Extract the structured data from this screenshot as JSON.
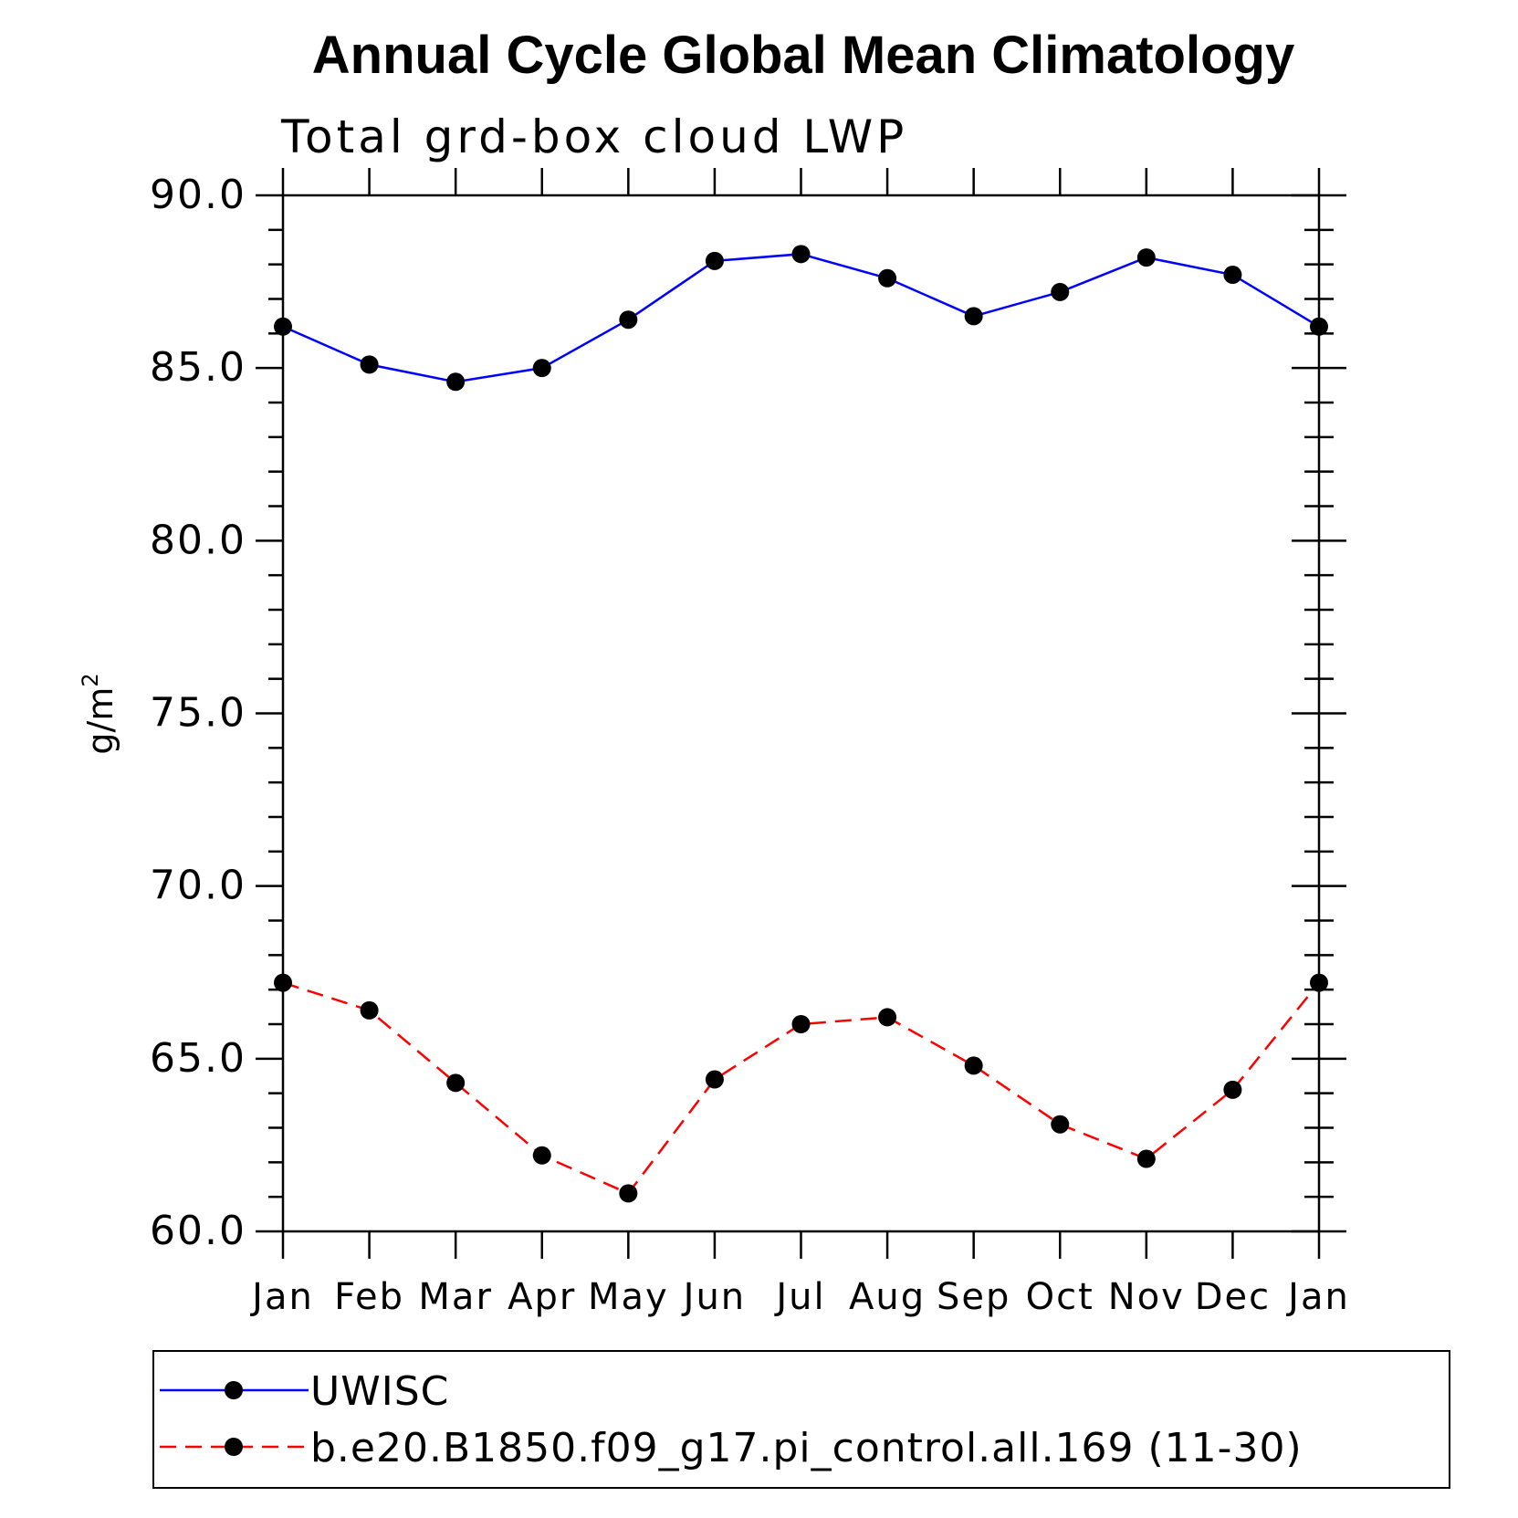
{
  "chart_data": {
    "type": "line",
    "title": "Annual Cycle Global Mean Climatology",
    "subtitle": "Total grd-box cloud LWP",
    "ylabel": "g/m",
    "ylabel_superscript": "2",
    "xlabel": "",
    "ylim": [
      60,
      90
    ],
    "yticks": [
      "60.0",
      "65.0",
      "70.0",
      "75.0",
      "80.0",
      "85.0",
      "90.0"
    ],
    "ytick_values": [
      60,
      65,
      70,
      75,
      80,
      85,
      90
    ],
    "categories": [
      "Jan",
      "Feb",
      "Mar",
      "Apr",
      "May",
      "Jun",
      "Jul",
      "Aug",
      "Sep",
      "Oct",
      "Nov",
      "Dec",
      "Jan"
    ],
    "grid": false,
    "legend_position": "bottom",
    "series": [
      {
        "name": "UWISC",
        "color": "#0000ff",
        "dash": "solid",
        "marker": "filled-circle",
        "values": [
          86.2,
          85.1,
          84.6,
          85.0,
          86.4,
          88.1,
          88.3,
          87.6,
          86.5,
          87.2,
          88.2,
          87.7,
          86.2
        ]
      },
      {
        "name": "b.e20.B1850.f09_g17.pi_control.all.169 (11-30)",
        "color": "#ff0000",
        "dash": "dashed",
        "marker": "filled-circle",
        "values": [
          67.2,
          66.4,
          64.3,
          62.2,
          61.1,
          64.4,
          66.0,
          66.2,
          64.8,
          63.1,
          62.1,
          64.1,
          67.2
        ]
      }
    ]
  }
}
